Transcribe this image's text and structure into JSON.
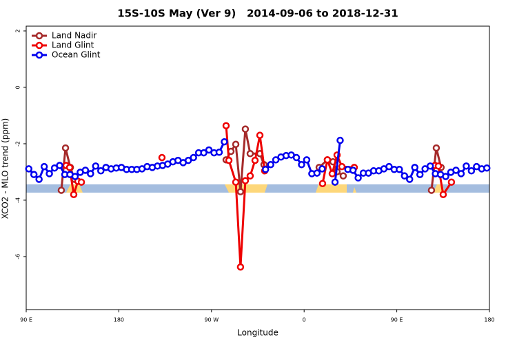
{
  "chart_data": {
    "type": "line",
    "title": "15S-10S May (Ver 9)   2014-09-06 to 2018-12-31",
    "x_label": "Longitude",
    "y_label": "XCO2 - MLO trend (ppm)",
    "xlim": [
      90,
      540
    ],
    "ylim": [
      -7.88,
      2.17
    ],
    "xticks": [
      {
        "value": 90,
        "label": "90 E"
      },
      180,
      {
        "value": 270,
        "label": "90 W"
      },
      {
        "value": 360,
        "label": "0"
      },
      {
        "value": 450,
        "label": "90 E"
      },
      {
        "value": 540,
        "label": "180"
      }
    ],
    "yticks": [
      2,
      0,
      -2,
      -4,
      -6
    ],
    "legend": "top-left",
    "series": [
      {
        "name": "Land Nadir",
        "color": "#a52a2a",
        "x": [
          124.1,
          128.2,
          132.9,
          137,
          null,
          284.2,
          288.9,
          293.6,
          298.2,
          302.9,
          307.6,
          317,
          321,
          null,
          374.6,
          382.6,
          388,
          392,
          398,
          null,
          483.7,
          488.4,
          493
        ],
        "values": [
          -3.65,
          -2.15,
          -2.84,
          -3.26,
          null,
          -2.57,
          -2.27,
          -2.02,
          -3.7,
          -1.48,
          -2.35,
          -2.35,
          -2.74,
          null,
          -2.84,
          -2.57,
          -2.64,
          -2.99,
          -3.14,
          null,
          -3.65,
          -2.15,
          -2.84
        ]
      },
      {
        "name": "Land Glint",
        "color": "#ee0000",
        "x": [
          128.8,
          132.2,
          136.2,
          140.2,
          143.6,
          null,
          221.9,
          null,
          284.2,
          286.9,
          293.6,
          298.2,
          302.9,
          307.6,
          312.3,
          317,
          321.7,
          null,
          377.9,
          382.6,
          387.3,
          392,
          396.7,
          408.7,
          null,
          487.1,
          490.4,
          495.1,
          503.1
        ],
        "values": [
          -2.77,
          -2.84,
          -3.8,
          -3.33,
          -3.36,
          null,
          -2.49,
          null,
          -1.36,
          -2.59,
          -3.36,
          -6.37,
          -3.31,
          -3.14,
          -2.59,
          -1.7,
          -2.96,
          null,
          -3.41,
          -2.57,
          -3.06,
          -2.4,
          -2.81,
          -2.84,
          null,
          -2.77,
          -2.79,
          -3.8,
          -3.36
        ]
      },
      {
        "name": "Ocean Glint",
        "color": "#0000ee",
        "x": [
          92.5,
          97.5,
          102.5,
          107.5,
          112.5,
          117.5,
          122.5,
          127.5,
          132.5,
          137.5,
          142.5,
          147.5,
          152.5,
          157.5,
          162.5,
          167.5,
          172.5,
          177.5,
          182.5,
          187.5,
          192.5,
          197.5,
          202.5,
          207.5,
          212.5,
          217.5,
          222.5,
          227.5,
          232.5,
          237.5,
          242.5,
          247.5,
          252.5,
          257.5,
          262.5,
          267.5,
          272.5,
          277.5,
          282.5,
          null,
          322.5,
          327.5,
          332.5,
          337.5,
          342.5,
          347.5,
          352.5,
          357.5,
          362.5,
          367.5,
          372.5,
          377.5,
          null,
          390,
          395,
          null,
          402.5,
          407.5,
          412.5,
          417.5,
          422.5,
          427.5,
          432.5,
          437.5,
          442.5,
          447.5,
          452.5,
          457.5,
          462.5,
          467.5,
          472.5,
          477.5,
          482.5,
          487.5,
          492.5,
          497.5,
          502.5,
          507.5,
          512.5,
          517.5,
          522.5,
          527.5,
          532.5,
          537.5
        ],
        "values": [
          -2.89,
          -3.09,
          -3.26,
          -2.81,
          -3.06,
          -2.86,
          -2.77,
          -3.09,
          -3.09,
          -3.16,
          -3.01,
          -2.94,
          -3.06,
          -2.79,
          -2.96,
          -2.84,
          -2.89,
          -2.86,
          -2.84,
          -2.91,
          -2.91,
          -2.91,
          -2.89,
          -2.81,
          -2.84,
          -2.79,
          -2.77,
          -2.72,
          -2.64,
          -2.59,
          -2.67,
          -2.59,
          -2.49,
          -2.32,
          -2.32,
          -2.22,
          -2.32,
          -2.3,
          -1.93,
          null,
          -2.91,
          -2.74,
          -2.57,
          -2.47,
          -2.42,
          -2.4,
          -2.49,
          -2.74,
          -2.57,
          -3.06,
          -3.04,
          -2.89,
          null,
          -3.36,
          -1.88,
          null,
          -2.91,
          -2.94,
          -3.21,
          -3.04,
          -3.04,
          -2.96,
          -2.96,
          -2.89,
          -2.81,
          -2.91,
          -2.91,
          -3.14,
          -3.26,
          -2.84,
          -3.09,
          -2.89,
          -2.79,
          -3.06,
          -3.09,
          -3.16,
          -3.01,
          -2.94,
          -3.06,
          -2.79,
          -2.96,
          -2.81,
          -2.89,
          -2.86
        ]
      }
    ]
  }
}
